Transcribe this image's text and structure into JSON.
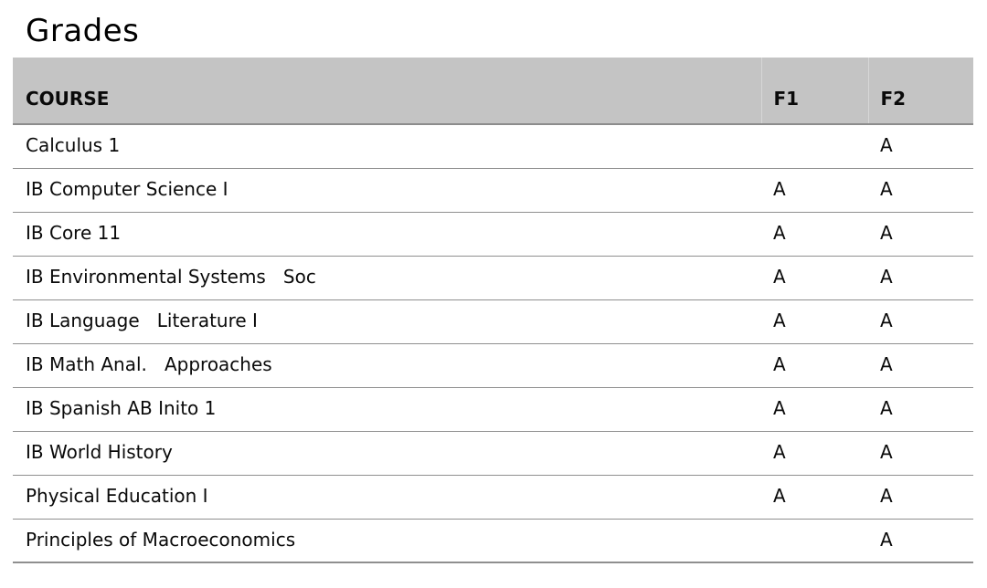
{
  "page": {
    "title": "Grades"
  },
  "colors": {
    "header_background": "#c4c4c4",
    "header_divider": "#d7d7d7",
    "row_border": "#8f8f8f",
    "text": "#0a0a0a",
    "background": "#ffffff"
  },
  "table": {
    "columns": [
      {
        "label": "COURSE"
      },
      {
        "label": "F1"
      },
      {
        "label": "F2"
      }
    ],
    "rows": [
      {
        "course": "Calculus 1",
        "f1": "",
        "f2": "A"
      },
      {
        "course": "IB Computer Science I",
        "f1": "A",
        "f2": "A"
      },
      {
        "course": "IB Core 11",
        "f1": "A",
        "f2": "A"
      },
      {
        "course": "IB Environmental Systems   Soc",
        "f1": "A",
        "f2": "A"
      },
      {
        "course": "IB Language   Literature I",
        "f1": "A",
        "f2": "A"
      },
      {
        "course": "IB Math Anal.   Approaches",
        "f1": "A",
        "f2": "A"
      },
      {
        "course": "IB Spanish AB Inito 1",
        "f1": "A",
        "f2": "A"
      },
      {
        "course": "IB World History",
        "f1": "A",
        "f2": "A"
      },
      {
        "course": "Physical Education I",
        "f1": "A",
        "f2": "A"
      },
      {
        "course": "Principles of Macroeconomics",
        "f1": "",
        "f2": "A"
      }
    ]
  }
}
